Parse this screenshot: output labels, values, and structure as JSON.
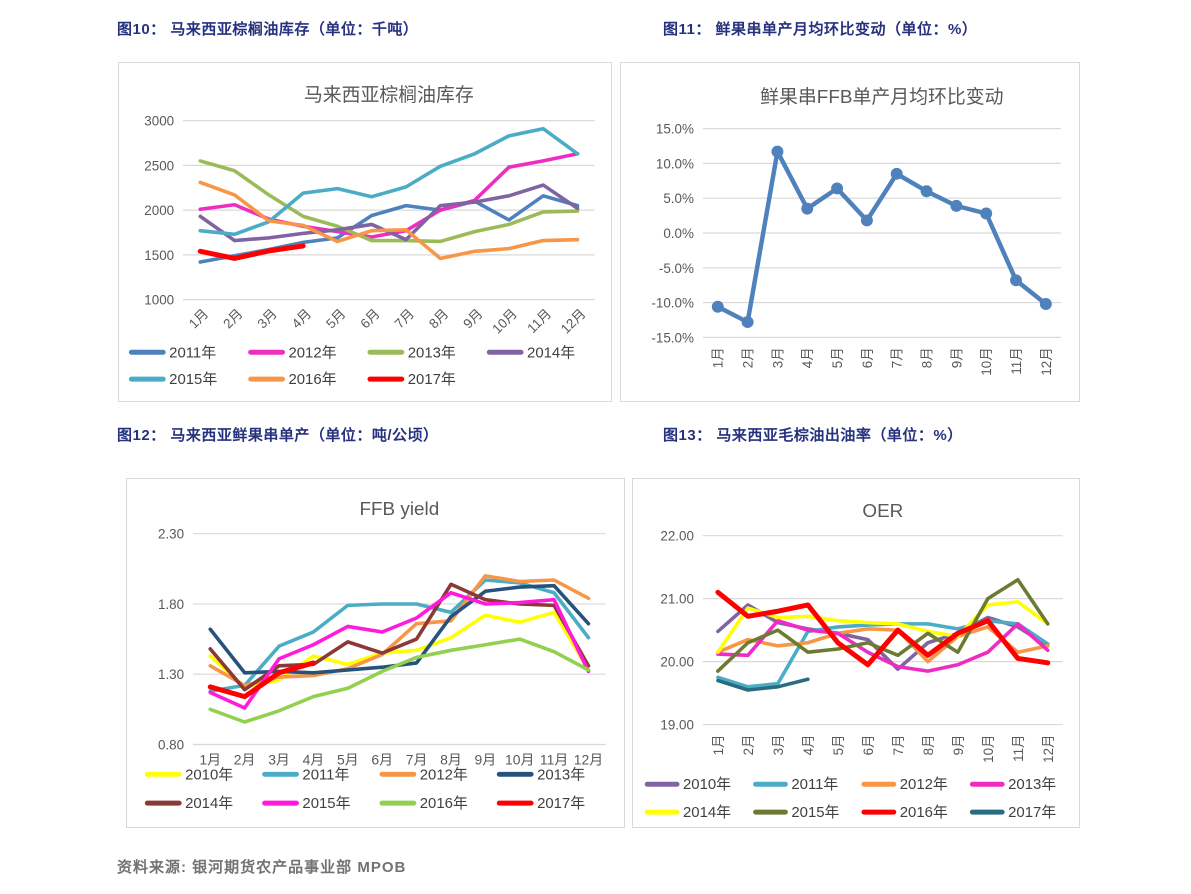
{
  "figures": [
    {
      "caption": "图10： 马来西亚棕榈油库存（单位：千吨）"
    },
    {
      "caption": "图11： 鲜果串单产月均环比变动（单位：%）"
    },
    {
      "caption": "图12： 马来西亚鲜果串单产（单位：吨/公顷）"
    },
    {
      "caption": "图13： 马来西亚毛棕油出油率（单位：%）"
    }
  ],
  "footer": {
    "text": "资料来源: 银河期货农产品事业部  MPOB"
  },
  "colors": {
    "caption": "#26327e",
    "chart_title": "#595959",
    "gridline": "#d9d9d9",
    "tick_label": "#595959",
    "legend_label": "#404040"
  },
  "chart_data": [
    {
      "type": "line",
      "title": "马来西亚棕榈油库存",
      "categories": [
        "1月",
        "2月",
        "3月",
        "4月",
        "5月",
        "6月",
        "7月",
        "8月",
        "9月",
        "10月",
        "11月",
        "12月"
      ],
      "ylim": [
        1000,
        3000
      ],
      "yticks": [
        1000,
        1500,
        2000,
        2500,
        3000
      ],
      "ytick_format": "int",
      "grid": true,
      "legend_position": "bottom",
      "x_label_rotation": -45,
      "series": [
        {
          "name": "2011年",
          "color": "#4f81bd",
          "values": [
            1420,
            1490,
            1560,
            1640,
            1690,
            1940,
            2050,
            2000,
            2100,
            1890,
            2160,
            2050
          ]
        },
        {
          "name": "2012年",
          "color": "#ee2ec0",
          "values": [
            2010,
            2060,
            1900,
            1820,
            1760,
            1700,
            1770,
            2000,
            2110,
            2480,
            2550,
            2630
          ]
        },
        {
          "name": "2013年",
          "color": "#9bbb59",
          "values": [
            2550,
            2440,
            2170,
            1930,
            1820,
            1660,
            1660,
            1650,
            1760,
            1840,
            1980,
            1990
          ]
        },
        {
          "name": "2014年",
          "color": "#8064a2",
          "values": [
            1930,
            1660,
            1690,
            1740,
            1780,
            1840,
            1670,
            2050,
            2090,
            2160,
            2280,
            2020
          ]
        },
        {
          "name": "2015年",
          "color": "#4bacc6",
          "values": [
            1770,
            1730,
            1870,
            2190,
            2240,
            2150,
            2260,
            2490,
            2630,
            2830,
            2910,
            2630
          ]
        },
        {
          "name": "2016年",
          "color": "#f79646",
          "values": [
            2310,
            2170,
            1880,
            1830,
            1650,
            1770,
            1780,
            1460,
            1540,
            1570,
            1660,
            1670
          ]
        },
        {
          "name": "2017年",
          "color": "#ff0000",
          "width": 5,
          "values": [
            1540,
            1460,
            1545,
            1600
          ]
        }
      ]
    },
    {
      "type": "line",
      "title": "鲜果串FFB单产月均环比变动",
      "categories": [
        "1月",
        "2月",
        "3月",
        "4月",
        "5月",
        "6月",
        "7月",
        "8月",
        "9月",
        "10月",
        "11月",
        "12月"
      ],
      "ylim": [
        -15,
        15
      ],
      "yticks": [
        -15,
        -10,
        -5,
        0,
        5,
        10,
        15
      ],
      "ytick_format": "pct1",
      "grid": true,
      "legend_position": "none",
      "x_label_rotation": -90,
      "markers": true,
      "series": [
        {
          "name": "",
          "color": "#4f81bd",
          "width": 4.5,
          "values": [
            -10.6,
            -12.8,
            11.7,
            3.5,
            6.4,
            1.8,
            8.5,
            6.0,
            3.9,
            2.8,
            -6.8,
            -10.2
          ]
        }
      ]
    },
    {
      "type": "line",
      "title": "FFB yield",
      "categories": [
        "1月",
        "2月",
        "3月",
        "4月",
        "5月",
        "6月",
        "7月",
        "8月",
        "9月",
        "10月",
        "11月",
        "12月"
      ],
      "ylim": [
        0.8,
        2.3
      ],
      "yticks": [
        0.8,
        1.3,
        1.8,
        2.3
      ],
      "ytick_format": "dec2",
      "grid": true,
      "legend_position": "bottom",
      "x_label_rotation": 0,
      "series": [
        {
          "name": "2010年",
          "color": "#ffff00",
          "values": [
            1.43,
            1.21,
            1.26,
            1.43,
            1.37,
            1.45,
            1.47,
            1.56,
            1.72,
            1.67,
            1.74,
            1.33
          ]
        },
        {
          "name": "2011年",
          "color": "#4bacc6",
          "values": [
            1.18,
            1.22,
            1.5,
            1.6,
            1.79,
            1.8,
            1.8,
            1.74,
            1.97,
            1.95,
            1.88,
            1.56
          ]
        },
        {
          "name": "2012年",
          "color": "#f79646",
          "values": [
            1.36,
            1.22,
            1.28,
            1.29,
            1.34,
            1.44,
            1.66,
            1.68,
            2.0,
            1.96,
            1.97,
            1.84
          ]
        },
        {
          "name": "2013年",
          "color": "#26527c",
          "values": [
            1.62,
            1.31,
            1.32,
            1.31,
            1.33,
            1.35,
            1.38,
            1.71,
            1.89,
            1.92,
            1.93,
            1.66
          ]
        },
        {
          "name": "2014年",
          "color": "#8c3836",
          "values": [
            1.48,
            1.19,
            1.36,
            1.37,
            1.53,
            1.45,
            1.55,
            1.94,
            1.83,
            1.8,
            1.79,
            1.36
          ]
        },
        {
          "name": "2015年",
          "color": "#ff1adc",
          "values": [
            1.17,
            1.06,
            1.41,
            1.51,
            1.64,
            1.6,
            1.7,
            1.88,
            1.8,
            1.81,
            1.83,
            1.32
          ]
        },
        {
          "name": "2016年",
          "color": "#92d050",
          "values": [
            1.05,
            0.96,
            1.04,
            1.14,
            1.2,
            1.32,
            1.42,
            1.47,
            1.51,
            1.55,
            1.46,
            1.33
          ]
        },
        {
          "name": "2017年",
          "color": "#ff0000",
          "width": 5,
          "values": [
            1.21,
            1.14,
            1.31,
            1.38
          ]
        }
      ]
    },
    {
      "type": "line",
      "title": "OER",
      "categories": [
        "1月",
        "2月",
        "3月",
        "4月",
        "5月",
        "6月",
        "7月",
        "8月",
        "9月",
        "10月",
        "11月",
        "12月"
      ],
      "ylim": [
        19.0,
        22.0
      ],
      "yticks": [
        19.0,
        20.0,
        21.0,
        22.0
      ],
      "ytick_format": "dec2",
      "grid": true,
      "legend_position": "bottom",
      "x_label_rotation": -90,
      "series": [
        {
          "name": "2010年",
          "color": "#8064a2",
          "values": [
            20.48,
            20.9,
            20.62,
            20.52,
            20.45,
            20.35,
            19.88,
            20.3,
            20.45,
            20.7,
            20.55,
            20.25
          ]
        },
        {
          "name": "2011年",
          "color": "#4bacc6",
          "values": [
            19.75,
            19.6,
            19.65,
            20.48,
            20.55,
            20.58,
            20.6,
            20.6,
            20.52,
            20.65,
            20.6,
            20.28
          ]
        },
        {
          "name": "2012年",
          "color": "#f79646",
          "values": [
            20.15,
            20.35,
            20.25,
            20.3,
            20.45,
            20.52,
            20.5,
            20.0,
            20.4,
            20.55,
            20.15,
            20.25
          ]
        },
        {
          "name": "2013年",
          "color": "#f02bc4",
          "values": [
            20.12,
            20.1,
            20.65,
            20.5,
            20.45,
            20.15,
            19.92,
            19.85,
            19.95,
            20.15,
            20.6,
            20.18
          ]
        },
        {
          "name": "2014年",
          "color": "#ffff00",
          "values": [
            20.15,
            20.85,
            20.7,
            20.72,
            20.65,
            20.62,
            20.6,
            20.48,
            20.4,
            20.9,
            20.95,
            20.6
          ]
        },
        {
          "name": "2015年",
          "color": "#6c7b32",
          "values": [
            19.85,
            20.3,
            20.5,
            20.15,
            20.2,
            20.3,
            20.1,
            20.45,
            20.15,
            21.0,
            21.3,
            20.6
          ]
        },
        {
          "name": "2016年",
          "color": "#ff0000",
          "width": 5,
          "values": [
            21.1,
            20.72,
            20.8,
            20.9,
            20.3,
            19.95,
            20.5,
            20.1,
            20.45,
            20.65,
            20.05,
            19.98
          ]
        },
        {
          "name": "2017年",
          "color": "#2b6d80",
          "values": [
            19.7,
            19.55,
            19.6,
            19.72
          ]
        }
      ]
    }
  ]
}
